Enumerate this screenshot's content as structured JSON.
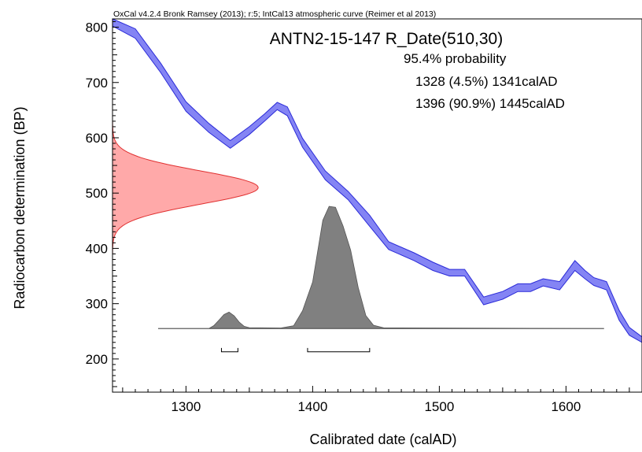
{
  "header": "OxCal v4.2.4 Bronk Ramsey (2013); r:5; IntCal13 atmospheric curve (Reimer et al 2013)",
  "chart_data": {
    "type": "area",
    "title": "ANTN2-15-147 R_Date(510,30)",
    "xlabel": "Calibrated date (calAD)",
    "ylabel": "Radiocarbon determination (BP)",
    "xlim": [
      1242,
      1660
    ],
    "ylim": [
      140,
      815
    ],
    "x_ticks": [
      1300,
      1400,
      1500,
      1600
    ],
    "y_ticks": [
      200,
      300,
      400,
      500,
      600,
      700,
      800
    ],
    "probability_label": "95.4% probability",
    "ranges": [
      {
        "text": "1328 (4.5%) 1341calAD",
        "from": 1328,
        "to": 1341,
        "percent": 4.5
      },
      {
        "text": "1396 (90.9%) 1445calAD",
        "from": 1396,
        "to": 1445,
        "percent": 90.9
      }
    ],
    "measurement": {
      "mean_bp": 510,
      "sigma": 30
    },
    "calibration_curve": {
      "color": "#5b5bf0",
      "points": [
        [
          1242,
          802,
          815
        ],
        [
          1260,
          780,
          797
        ],
        [
          1280,
          718,
          735
        ],
        [
          1300,
          648,
          665
        ],
        [
          1318,
          610,
          626
        ],
        [
          1335,
          581,
          595
        ],
        [
          1350,
          606,
          620
        ],
        [
          1362,
          630,
          643
        ],
        [
          1372,
          651,
          664
        ],
        [
          1380,
          640,
          656
        ],
        [
          1392,
          583,
          599
        ],
        [
          1410,
          524,
          540
        ],
        [
          1428,
          488,
          503
        ],
        [
          1445,
          440,
          460
        ],
        [
          1460,
          398,
          412
        ],
        [
          1480,
          378,
          392
        ],
        [
          1495,
          360,
          375
        ],
        [
          1508,
          350,
          362
        ],
        [
          1520,
          350,
          362
        ],
        [
          1535,
          298,
          312
        ],
        [
          1550,
          308,
          322
        ],
        [
          1562,
          322,
          336
        ],
        [
          1572,
          322,
          336
        ],
        [
          1582,
          332,
          345
        ],
        [
          1595,
          325,
          340
        ],
        [
          1607,
          360,
          378
        ],
        [
          1615,
          345,
          360
        ],
        [
          1622,
          333,
          347
        ],
        [
          1632,
          325,
          340
        ],
        [
          1642,
          270,
          288
        ],
        [
          1650,
          243,
          257
        ],
        [
          1660,
          230,
          240
        ]
      ]
    },
    "posterior": {
      "color": "#808080",
      "baseline_bp": 255,
      "x_range": [
        1278,
        1630
      ],
      "points": [
        [
          1278,
          0
        ],
        [
          1318,
          0
        ],
        [
          1322,
          1.6
        ],
        [
          1326,
          4.5
        ],
        [
          1330,
          7.5
        ],
        [
          1334,
          8.8
        ],
        [
          1338,
          6.8
        ],
        [
          1342,
          3.5
        ],
        [
          1346,
          1.2
        ],
        [
          1350,
          0.5
        ],
        [
          1375,
          0.3
        ],
        [
          1385,
          1.5
        ],
        [
          1392,
          9.5
        ],
        [
          1400,
          25
        ],
        [
          1408,
          58
        ],
        [
          1413,
          65.5
        ],
        [
          1418,
          65
        ],
        [
          1424,
          55
        ],
        [
          1430,
          42
        ],
        [
          1436,
          22
        ],
        [
          1442,
          7
        ],
        [
          1448,
          1.8
        ],
        [
          1456,
          0.4
        ],
        [
          1630,
          0
        ]
      ],
      "max_height_bp": 221
    },
    "measurement_curve": {
      "color": "#ff9a9a",
      "amplitude_years": 115
    }
  }
}
